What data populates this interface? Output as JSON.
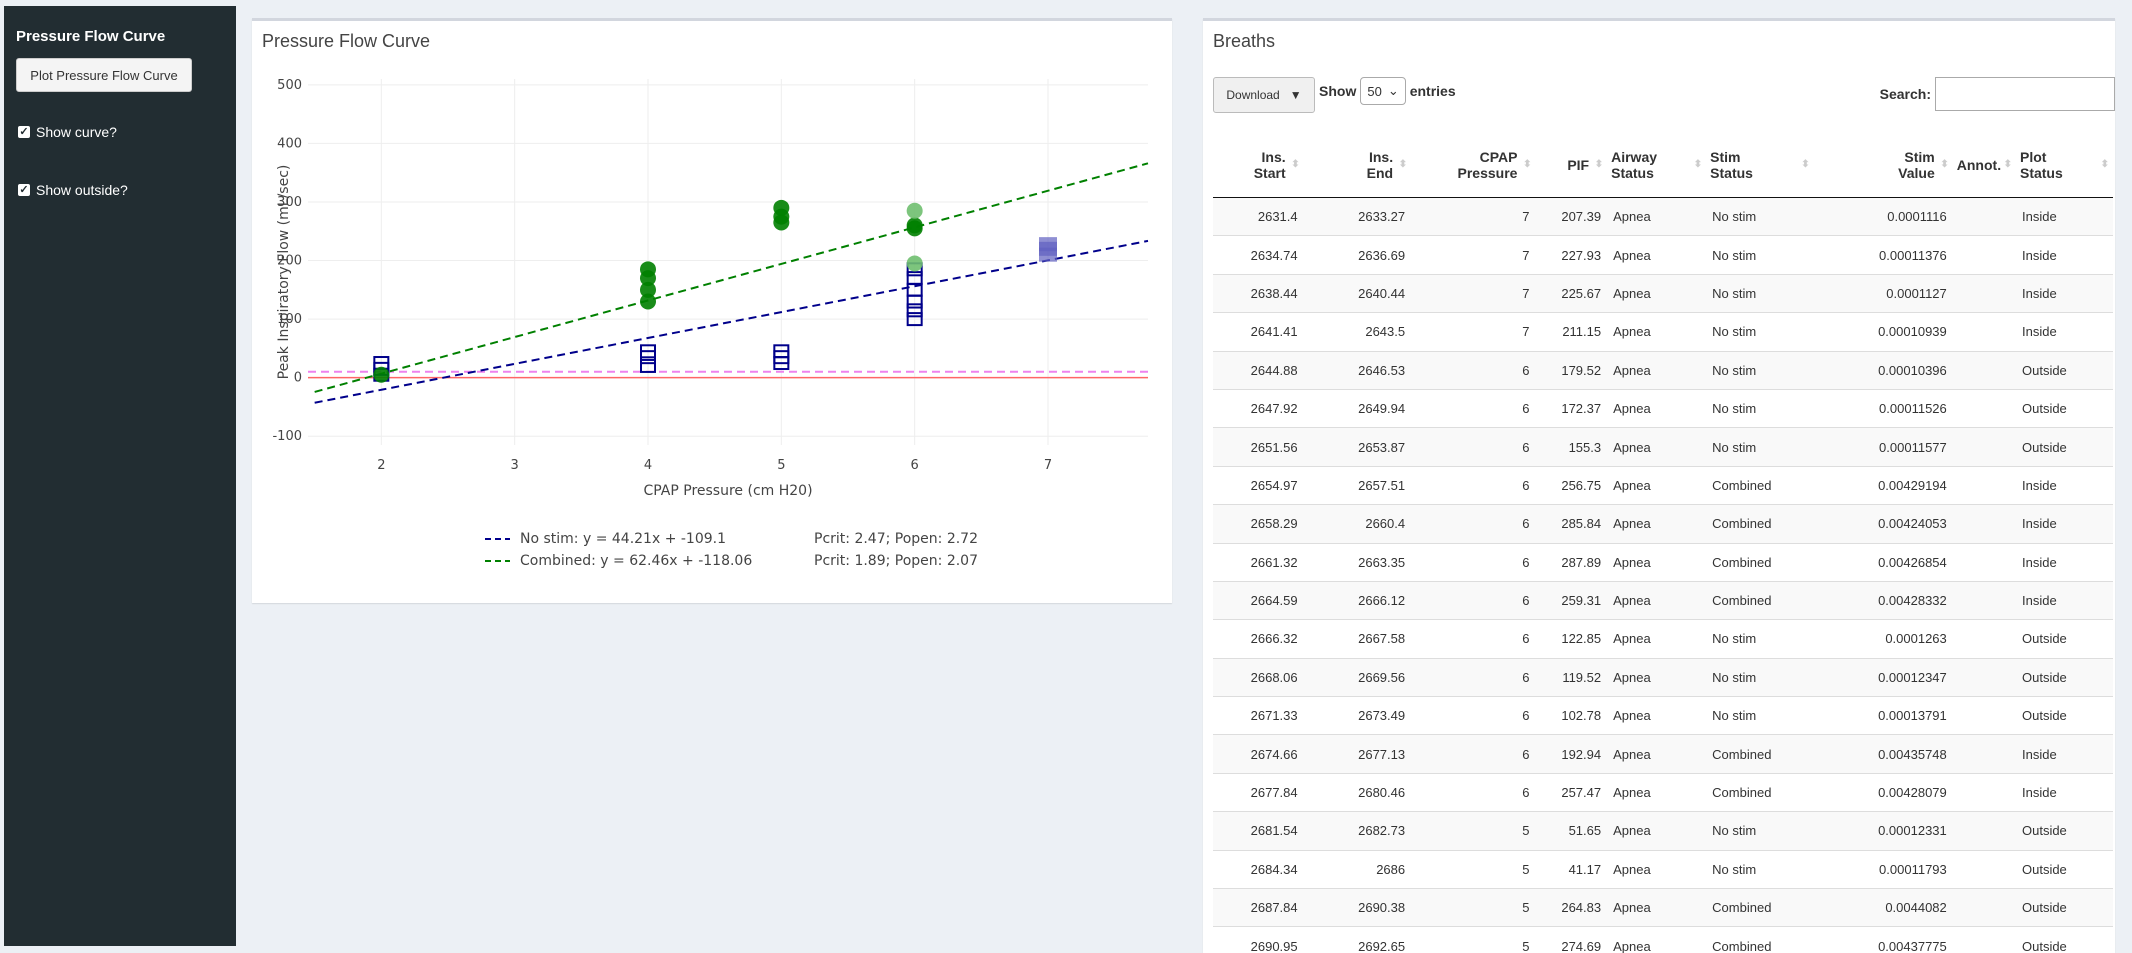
{
  "sidebar": {
    "title": "Pressure Flow Curve",
    "plot_button": "Plot Pressure Flow Curve",
    "show_curve": "Show curve?",
    "show_outside": "Show outside?"
  },
  "plot_panel": {
    "title": "Pressure Flow Curve"
  },
  "chart_data": {
    "type": "scatter",
    "xlabel": "CPAP Pressure (cm H20)",
    "ylabel": "Peak Inspiratory Flow (mL/sec)",
    "xlim": [
      1.45,
      7.75
    ],
    "ylim": [
      -115,
      510
    ],
    "xticks": [
      "2",
      "3",
      "4",
      "5",
      "6",
      "7"
    ],
    "yticks": [
      "500",
      "400",
      "300",
      "200",
      "100",
      "0",
      "-100"
    ],
    "grid": true,
    "colors": {
      "no_stim": "#00008b",
      "combined": "#008000",
      "combined_outside": "#6fbf6f",
      "no_stim_outside": "#6060c0",
      "pcrit_line": "#ff6666",
      "popen_line": "#ee82ee"
    },
    "series": [
      {
        "name": "No stim",
        "marker": "square-open",
        "color": "#00008b",
        "points": [
          [
            2,
            5
          ],
          [
            2,
            15
          ],
          [
            2,
            25
          ],
          [
            4,
            20
          ],
          [
            4,
            35
          ],
          [
            4,
            45
          ],
          [
            5,
            25
          ],
          [
            5,
            35
          ],
          [
            5,
            45
          ],
          [
            6,
            100
          ],
          [
            6,
            115
          ],
          [
            6,
            130
          ],
          [
            6,
            150
          ],
          [
            6,
            170
          ],
          [
            6,
            185
          ]
        ]
      },
      {
        "name": "Combined",
        "marker": "circle",
        "color": "#008000",
        "points": [
          [
            2,
            5
          ],
          [
            4,
            130
          ],
          [
            4,
            150
          ],
          [
            4,
            170
          ],
          [
            4,
            185
          ],
          [
            5,
            265
          ],
          [
            5,
            275
          ],
          [
            5,
            290
          ],
          [
            6,
            255
          ],
          [
            6,
            260
          ]
        ]
      },
      {
        "name": "Combined outside",
        "marker": "circle",
        "color": "#6fbf6f",
        "points": [
          [
            6,
            285
          ],
          [
            6,
            195
          ]
        ]
      },
      {
        "name": "No stim outside",
        "marker": "square",
        "color": "#6060c0",
        "points": [
          [
            7,
            210
          ],
          [
            7,
            220
          ],
          [
            7,
            228
          ]
        ]
      }
    ],
    "fits": [
      {
        "name": "No stim",
        "slope": 44.21,
        "intercept": -109.1,
        "color": "#00008b"
      },
      {
        "name": "Combined",
        "slope": 62.46,
        "intercept": -118.06,
        "color": "#008000"
      }
    ],
    "hlines": [
      0,
      10
    ],
    "legend": [
      {
        "label": "No stim: y = 44.21x + -109.1",
        "stats": "Pcrit: 2.47; Popen: 2.72",
        "color": "#00008b"
      },
      {
        "label": "Combined: y = 62.46x + -118.06",
        "stats": "Pcrit: 1.89; Popen: 2.07",
        "color": "#008000"
      }
    ]
  },
  "table_panel": {
    "title": "Breaths",
    "download": "Download",
    "show": "Show",
    "entries_value": "50",
    "entries": "entries",
    "search_label": "Search:",
    "columns": [
      "Ins.\nStart",
      "Ins.\nEnd",
      "CPAP\nPressure",
      "PIF",
      "Airway\nStatus",
      "Stim\nStatus",
      "Stim\nValue",
      "Annot.",
      "Plot\nStatus"
    ],
    "rows": [
      [
        "2631.4",
        "2633.27",
        "7",
        "207.39",
        "Apnea",
        "No stim",
        "0.0001116",
        "",
        "Inside"
      ],
      [
        "2634.74",
        "2636.69",
        "7",
        "227.93",
        "Apnea",
        "No stim",
        "0.00011376",
        "",
        "Inside"
      ],
      [
        "2638.44",
        "2640.44",
        "7",
        "225.67",
        "Apnea",
        "No stim",
        "0.0001127",
        "",
        "Inside"
      ],
      [
        "2641.41",
        "2643.5",
        "7",
        "211.15",
        "Apnea",
        "No stim",
        "0.00010939",
        "",
        "Inside"
      ],
      [
        "2644.88",
        "2646.53",
        "6",
        "179.52",
        "Apnea",
        "No stim",
        "0.00010396",
        "",
        "Outside"
      ],
      [
        "2647.92",
        "2649.94",
        "6",
        "172.37",
        "Apnea",
        "No stim",
        "0.00011526",
        "",
        "Outside"
      ],
      [
        "2651.56",
        "2653.87",
        "6",
        "155.3",
        "Apnea",
        "No stim",
        "0.00011577",
        "",
        "Outside"
      ],
      [
        "2654.97",
        "2657.51",
        "6",
        "256.75",
        "Apnea",
        "Combined",
        "0.00429194",
        "",
        "Inside"
      ],
      [
        "2658.29",
        "2660.4",
        "6",
        "285.84",
        "Apnea",
        "Combined",
        "0.00424053",
        "",
        "Inside"
      ],
      [
        "2661.32",
        "2663.35",
        "6",
        "287.89",
        "Apnea",
        "Combined",
        "0.00426854",
        "",
        "Inside"
      ],
      [
        "2664.59",
        "2666.12",
        "6",
        "259.31",
        "Apnea",
        "Combined",
        "0.00428332",
        "",
        "Inside"
      ],
      [
        "2666.32",
        "2667.58",
        "6",
        "122.85",
        "Apnea",
        "No stim",
        "0.0001263",
        "",
        "Outside"
      ],
      [
        "2668.06",
        "2669.56",
        "6",
        "119.52",
        "Apnea",
        "No stim",
        "0.00012347",
        "",
        "Outside"
      ],
      [
        "2671.33",
        "2673.49",
        "6",
        "102.78",
        "Apnea",
        "No stim",
        "0.00013791",
        "",
        "Outside"
      ],
      [
        "2674.66",
        "2677.13",
        "6",
        "192.94",
        "Apnea",
        "Combined",
        "0.00435748",
        "",
        "Inside"
      ],
      [
        "2677.84",
        "2680.46",
        "6",
        "257.47",
        "Apnea",
        "Combined",
        "0.00428079",
        "",
        "Inside"
      ],
      [
        "2681.54",
        "2682.73",
        "5",
        "51.65",
        "Apnea",
        "No stim",
        "0.00012331",
        "",
        "Outside"
      ],
      [
        "2684.34",
        "2686",
        "5",
        "41.17",
        "Apnea",
        "No stim",
        "0.00011793",
        "",
        "Outside"
      ],
      [
        "2687.84",
        "2690.38",
        "5",
        "264.83",
        "Apnea",
        "Combined",
        "0.0044082",
        "",
        "Outside"
      ],
      [
        "2690.95",
        "2692.65",
        "5",
        "274.69",
        "Apnea",
        "Combined",
        "0.00437775",
        "",
        "Outside"
      ]
    ]
  }
}
